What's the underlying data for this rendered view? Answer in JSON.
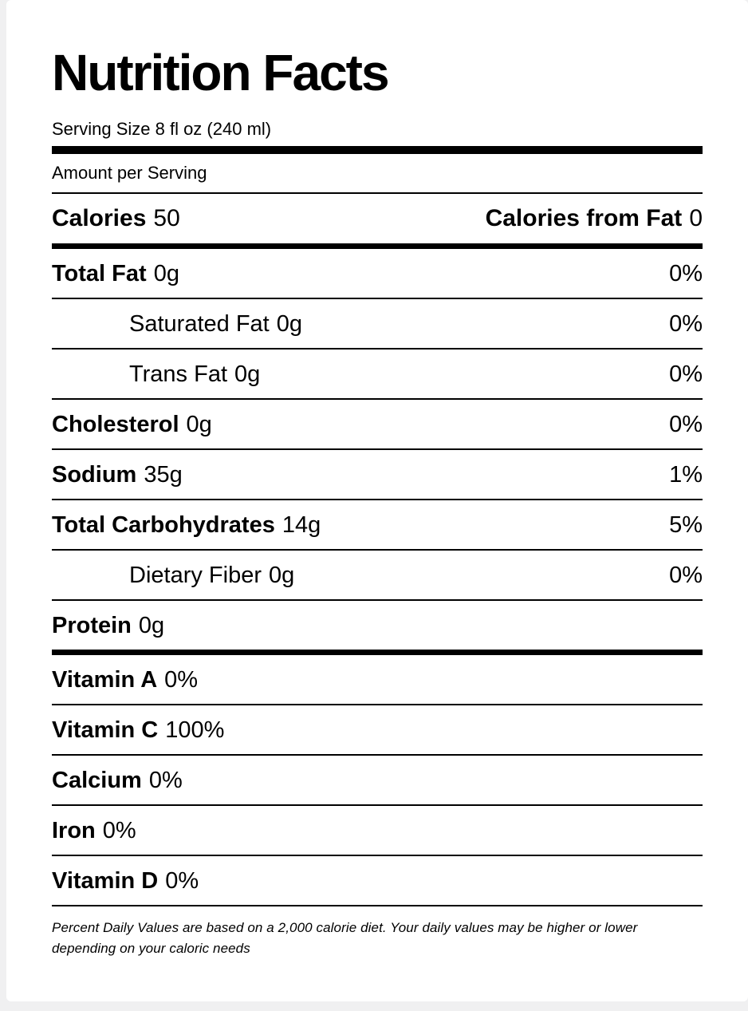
{
  "label": {
    "title": "Nutrition Facts",
    "serving_size": "Serving Size 8 fl oz (240 ml)",
    "amount_per_serving": "Amount per Serving",
    "calories": {
      "label": "Calories",
      "value": "50"
    },
    "calories_from_fat": {
      "label": "Calories from Fat",
      "value": "0"
    },
    "footnote": "Percent Daily Values are based on a 2,000 calorie diet. Your daily values may be higher or lower depending on your caloric needs"
  },
  "nutrients": [
    {
      "label": "Total Fat",
      "value": "0g",
      "daily_value": "0%"
    },
    {
      "label": "Saturated Fat",
      "value": "0g",
      "daily_value": "0%"
    },
    {
      "label": "Trans Fat",
      "value": "0g",
      "daily_value": "0%"
    },
    {
      "label": "Cholesterol",
      "value": "0g",
      "daily_value": "0%"
    },
    {
      "label": "Sodium",
      "value": "35g",
      "daily_value": "1%"
    },
    {
      "label": "Total Carbohydrates",
      "value": "14g",
      "daily_value": "5%"
    },
    {
      "label": "Dietary Fiber",
      "value": "0g",
      "daily_value": "0%"
    },
    {
      "label": "Protein",
      "value": "0g",
      "daily_value": ""
    }
  ],
  "vitamins": [
    {
      "label": "Vitamin A",
      "value": "0%"
    },
    {
      "label": "Vitamin C",
      "value": "100%"
    },
    {
      "label": "Calcium",
      "value": "0%"
    },
    {
      "label": "Iron",
      "value": "0%"
    },
    {
      "label": "Vitamin D",
      "value": "0%"
    }
  ],
  "colors": {
    "text": "#000000",
    "card_background": "#ffffff",
    "page_background": "#f0f0f1",
    "rule": "#000000"
  }
}
